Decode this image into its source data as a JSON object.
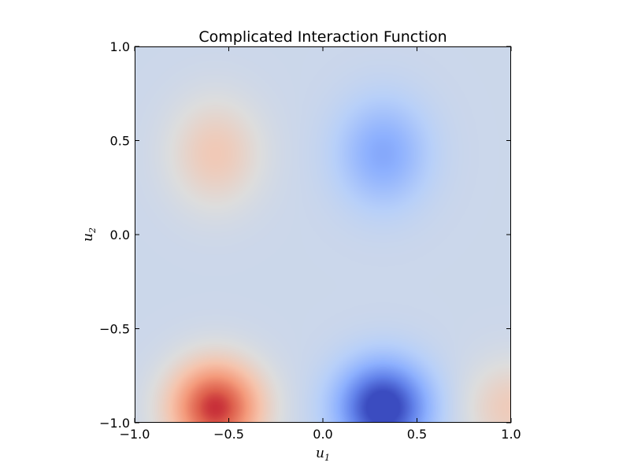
{
  "chart_data": {
    "type": "heatmap",
    "title": "Complicated Interaction Function",
    "xlabel": "u1",
    "ylabel": "u2",
    "xlim": [
      -1.0,
      1.0
    ],
    "ylim": [
      -1.0,
      1.0
    ],
    "colormap": "coolwarm",
    "grid": false,
    "xticks": [
      {
        "value": -1.0,
        "label": "−1.0"
      },
      {
        "value": -0.5,
        "label": "−0.5"
      },
      {
        "value": 0.0,
        "label": "0.0"
      },
      {
        "value": 0.5,
        "label": "0.5"
      },
      {
        "value": 1.0,
        "label": "1.0"
      }
    ],
    "yticks": [
      {
        "value": -1.0,
        "label": "−1.0"
      },
      {
        "value": -0.5,
        "label": "−0.5"
      },
      {
        "value": 0.0,
        "label": "0.0"
      },
      {
        "value": 0.5,
        "label": "0.5"
      },
      {
        "value": 1.0,
        "label": "1.0"
      }
    ],
    "features": [
      {
        "x": -0.57,
        "y": -0.92,
        "level": 1.0
      },
      {
        "x": 0.32,
        "y": -0.92,
        "level": -1.0
      },
      {
        "x": -0.57,
        "y": 0.43,
        "level": 0.32
      },
      {
        "x": 0.32,
        "y": 0.43,
        "level": -0.42
      },
      {
        "x": 1.0,
        "y": -0.92,
        "level": 0.3
      }
    ]
  }
}
